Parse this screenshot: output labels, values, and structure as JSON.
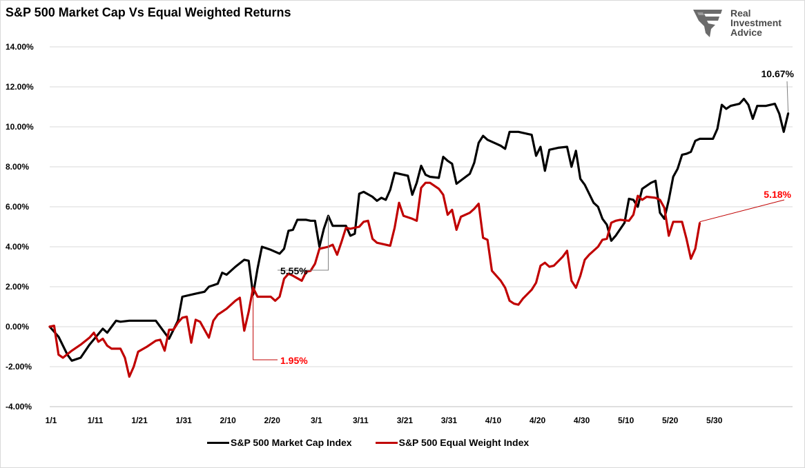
{
  "chart_data": {
    "type": "line",
    "title": "S&P 500 Market Cap Vs Equal Weighted Returns",
    "x_tick_labels": [
      "1/1",
      "1/11",
      "1/21",
      "1/31",
      "2/10",
      "2/20",
      "3/1",
      "3/11",
      "3/21",
      "3/31",
      "4/10",
      "4/20",
      "4/30",
      "5/10",
      "5/20",
      "5/30"
    ],
    "y_tick_labels": [
      "-4.00%",
      "-2.00%",
      "0.00%",
      "2.00%",
      "4.00%",
      "6.00%",
      "8.00%",
      "10.00%",
      "12.00%",
      "14.00%"
    ],
    "ylim": [
      -4,
      14
    ],
    "x_range_days": [
      0,
      150
    ],
    "grid": true,
    "legend_position": "bottom",
    "series": [
      {
        "name": "S&P 500 Market Cap Index",
        "color": "#000000",
        "points": [
          [
            0,
            0
          ],
          [
            2,
            -0.5
          ],
          [
            4,
            -1.4
          ],
          [
            5,
            -1.7
          ],
          [
            7,
            -1.55
          ],
          [
            9,
            -0.9
          ],
          [
            12,
            -0.1
          ],
          [
            13,
            -0.3
          ],
          [
            14,
            0.0
          ],
          [
            15,
            0.3
          ],
          [
            16,
            0.25
          ],
          [
            18,
            0.3
          ],
          [
            22,
            0.3
          ],
          [
            24,
            0.3
          ],
          [
            25,
            0.0
          ],
          [
            27,
            -0.6
          ],
          [
            29,
            0.3
          ],
          [
            30,
            1.5
          ],
          [
            33,
            1.65
          ],
          [
            35,
            1.75
          ],
          [
            36,
            2.0
          ],
          [
            38,
            2.15
          ],
          [
            39,
            2.7
          ],
          [
            40,
            2.6
          ],
          [
            42,
            3.0
          ],
          [
            44,
            3.35
          ],
          [
            45,
            3.3
          ],
          [
            46,
            1.6
          ],
          [
            47,
            2.9
          ],
          [
            48,
            4.0
          ],
          [
            50,
            3.85
          ],
          [
            52,
            3.65
          ],
          [
            53,
            3.9
          ],
          [
            54,
            4.8
          ],
          [
            55,
            4.85
          ],
          [
            56,
            5.35
          ],
          [
            58,
            5.35
          ],
          [
            59,
            5.3
          ],
          [
            60,
            5.3
          ],
          [
            61,
            4.0
          ],
          [
            62,
            4.9
          ],
          [
            63,
            5.55
          ],
          [
            64,
            5.05
          ],
          [
            67,
            5.05
          ],
          [
            68,
            4.55
          ],
          [
            69,
            4.65
          ],
          [
            70,
            6.65
          ],
          [
            71,
            6.75
          ],
          [
            73,
            6.5
          ],
          [
            74,
            6.3
          ],
          [
            75,
            6.45
          ],
          [
            76,
            6.35
          ],
          [
            77,
            6.85
          ],
          [
            78,
            7.7
          ],
          [
            80,
            7.6
          ],
          [
            81,
            7.55
          ],
          [
            82,
            6.6
          ],
          [
            83,
            7.2
          ],
          [
            84,
            8.05
          ],
          [
            85,
            7.6
          ],
          [
            86,
            7.5
          ],
          [
            88,
            7.45
          ],
          [
            89,
            8.5
          ],
          [
            90,
            8.3
          ],
          [
            91,
            8.15
          ],
          [
            92,
            7.15
          ],
          [
            95,
            7.65
          ],
          [
            96,
            8.2
          ],
          [
            97,
            9.2
          ],
          [
            98,
            9.55
          ],
          [
            99,
            9.35
          ],
          [
            101,
            9.15
          ],
          [
            102,
            9.05
          ],
          [
            103,
            8.9
          ],
          [
            104,
            9.75
          ],
          [
            106,
            9.75
          ],
          [
            108,
            9.65
          ],
          [
            109,
            9.6
          ],
          [
            110,
            8.55
          ],
          [
            111,
            9.0
          ],
          [
            112,
            7.8
          ],
          [
            113,
            8.85
          ],
          [
            115,
            8.95
          ],
          [
            117,
            9.0
          ],
          [
            118,
            8.0
          ],
          [
            119,
            8.8
          ],
          [
            120,
            7.4
          ],
          [
            121,
            7.1
          ],
          [
            123,
            6.2
          ],
          [
            124,
            6.0
          ],
          [
            125,
            5.4
          ],
          [
            126,
            5.1
          ],
          [
            127,
            4.3
          ],
          [
            128,
            4.55
          ],
          [
            130,
            5.2
          ],
          [
            131,
            6.4
          ],
          [
            132,
            6.35
          ],
          [
            133,
            6.0
          ],
          [
            134,
            6.9
          ],
          [
            136,
            7.2
          ],
          [
            137,
            7.3
          ],
          [
            138,
            5.7
          ],
          [
            139,
            5.4
          ],
          [
            140,
            6.35
          ],
          [
            141,
            7.5
          ],
          [
            142,
            7.9
          ],
          [
            143,
            8.6
          ],
          [
            144,
            8.65
          ],
          [
            145,
            8.75
          ],
          [
            146,
            9.3
          ],
          [
            147,
            9.4
          ],
          [
            148,
            9.4
          ],
          [
            150,
            9.4
          ],
          [
            151,
            9.9
          ],
          [
            152,
            11.1
          ],
          [
            153,
            10.9
          ],
          [
            154,
            11.05
          ],
          [
            156,
            11.15
          ],
          [
            157,
            11.4
          ],
          [
            158,
            11.1
          ],
          [
            159,
            10.4
          ],
          [
            160,
            11.05
          ],
          [
            162,
            11.05
          ],
          [
            163,
            11.1
          ],
          [
            164,
            11.15
          ],
          [
            165,
            10.65
          ],
          [
            166,
            9.75
          ],
          [
            167,
            10.67
          ]
        ]
      },
      {
        "name": "S&P 500 Equal Weight Index",
        "color": "#c00000",
        "points": [
          [
            0,
            0
          ],
          [
            1,
            0.05
          ],
          [
            2,
            -1.4
          ],
          [
            3,
            -1.55
          ],
          [
            5,
            -1.2
          ],
          [
            7,
            -0.9
          ],
          [
            9,
            -0.55
          ],
          [
            10,
            -0.3
          ],
          [
            11,
            -0.75
          ],
          [
            12,
            -0.6
          ],
          [
            13,
            -0.95
          ],
          [
            14,
            -1.1
          ],
          [
            16,
            -1.1
          ],
          [
            17,
            -1.55
          ],
          [
            18,
            -2.5
          ],
          [
            19,
            -2.0
          ],
          [
            20,
            -1.25
          ],
          [
            22,
            -1.0
          ],
          [
            24,
            -0.7
          ],
          [
            25,
            -0.65
          ],
          [
            26,
            -1.2
          ],
          [
            27,
            -0.15
          ],
          [
            28,
            -0.15
          ],
          [
            29,
            0.2
          ],
          [
            30,
            0.45
          ],
          [
            31,
            0.5
          ],
          [
            32,
            -0.8
          ],
          [
            33,
            0.35
          ],
          [
            34,
            0.25
          ],
          [
            36,
            -0.55
          ],
          [
            37,
            0.3
          ],
          [
            38,
            0.6
          ],
          [
            39,
            0.75
          ],
          [
            40,
            0.9
          ],
          [
            42,
            1.3
          ],
          [
            43,
            1.45
          ],
          [
            44,
            -0.2
          ],
          [
            45,
            0.75
          ],
          [
            46,
            1.95
          ],
          [
            47,
            1.5
          ],
          [
            49,
            1.5
          ],
          [
            50,
            1.5
          ],
          [
            51,
            1.3
          ],
          [
            52,
            1.5
          ],
          [
            53,
            2.4
          ],
          [
            54,
            2.65
          ],
          [
            55,
            2.55
          ],
          [
            57,
            2.3
          ],
          [
            58,
            2.75
          ],
          [
            59,
            2.8
          ],
          [
            60,
            3.15
          ],
          [
            61,
            3.9
          ],
          [
            63,
            4.0
          ],
          [
            64,
            4.1
          ],
          [
            65,
            3.6
          ],
          [
            66,
            4.25
          ],
          [
            67,
            4.95
          ],
          [
            68,
            4.9
          ],
          [
            70,
            5.0
          ],
          [
            71,
            5.25
          ],
          [
            72,
            5.3
          ],
          [
            73,
            4.4
          ],
          [
            74,
            4.2
          ],
          [
            76,
            4.1
          ],
          [
            77,
            4.05
          ],
          [
            78,
            4.95
          ],
          [
            79,
            6.2
          ],
          [
            80,
            5.55
          ],
          [
            82,
            5.4
          ],
          [
            83,
            5.3
          ],
          [
            84,
            6.95
          ],
          [
            85,
            7.2
          ],
          [
            86,
            7.2
          ],
          [
            88,
            6.9
          ],
          [
            89,
            6.6
          ],
          [
            90,
            5.6
          ],
          [
            91,
            5.85
          ],
          [
            92,
            4.85
          ],
          [
            93,
            5.5
          ],
          [
            95,
            5.7
          ],
          [
            96,
            5.9
          ],
          [
            97,
            6.15
          ],
          [
            98,
            4.45
          ],
          [
            99,
            4.35
          ],
          [
            100,
            2.8
          ],
          [
            102,
            2.3
          ],
          [
            103,
            1.95
          ],
          [
            104,
            1.3
          ],
          [
            105,
            1.15
          ],
          [
            106,
            1.1
          ],
          [
            107,
            1.4
          ],
          [
            109,
            1.85
          ],
          [
            110,
            2.2
          ],
          [
            111,
            3.05
          ],
          [
            112,
            3.2
          ],
          [
            113,
            3.0
          ],
          [
            114,
            3.05
          ],
          [
            116,
            3.5
          ],
          [
            117,
            3.8
          ],
          [
            118,
            2.3
          ],
          [
            119,
            1.95
          ],
          [
            120,
            2.55
          ],
          [
            121,
            3.35
          ],
          [
            122,
            3.6
          ],
          [
            124,
            4.0
          ],
          [
            125,
            4.35
          ],
          [
            126,
            4.4
          ],
          [
            127,
            5.2
          ],
          [
            128,
            5.3
          ],
          [
            129,
            5.35
          ],
          [
            131,
            5.3
          ],
          [
            132,
            5.6
          ],
          [
            133,
            6.55
          ],
          [
            134,
            6.35
          ],
          [
            135,
            6.5
          ],
          [
            137,
            6.45
          ],
          [
            138,
            6.35
          ],
          [
            139,
            5.95
          ],
          [
            140,
            4.55
          ],
          [
            141,
            5.25
          ],
          [
            143,
            5.25
          ],
          [
            144,
            4.4
          ],
          [
            145,
            3.4
          ],
          [
            146,
            3.9
          ],
          [
            147,
            5.18
          ]
        ]
      }
    ],
    "annotations": [
      {
        "text": "5.55%",
        "x": 63,
        "y": 5.55,
        "color": "#000000"
      },
      {
        "text": "1.95%",
        "x": 46,
        "y": 1.95,
        "color": "#ff0000"
      },
      {
        "text": "10.67%",
        "x": 167,
        "y": 10.67,
        "color": "#000000"
      },
      {
        "text": "5.18%",
        "x": 147,
        "y": 5.18,
        "color": "#ff0000"
      }
    ]
  },
  "logo": {
    "line1": "Real",
    "line2": "Investment",
    "line3": "Advice"
  },
  "legend": {
    "item1": "S&P 500 Market Cap Index",
    "item2": "S&P 500 Equal Weight Index"
  }
}
